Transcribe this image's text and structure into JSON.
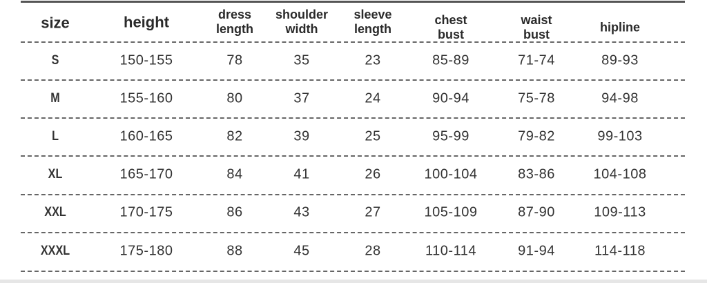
{
  "headers": [
    "size",
    "height",
    "dress\nlength",
    "shoulder\nwidth",
    "sleeve\nlength",
    "chest\nbust",
    "waist\nbust",
    "hipline"
  ],
  "rows": [
    [
      "S",
      "150-155",
      "78",
      "35",
      "23",
      "85-89",
      "71-74",
      "89-93"
    ],
    [
      "M",
      "155-160",
      "80",
      "37",
      "24",
      "90-94",
      "75-78",
      "94-98"
    ],
    [
      "L",
      "160-165",
      "82",
      "39",
      "25",
      "95-99",
      "79-82",
      "99-103"
    ],
    [
      "XL",
      "165-170",
      "84",
      "41",
      "26",
      "100-104",
      "83-86",
      "104-108"
    ],
    [
      "XXL",
      "170-175",
      "86",
      "43",
      "27",
      "105-109",
      "87-90",
      "109-113"
    ],
    [
      "XXXL",
      "175-180",
      "88",
      "45",
      "28",
      "110-114",
      "91-94",
      "114-118"
    ]
  ]
}
